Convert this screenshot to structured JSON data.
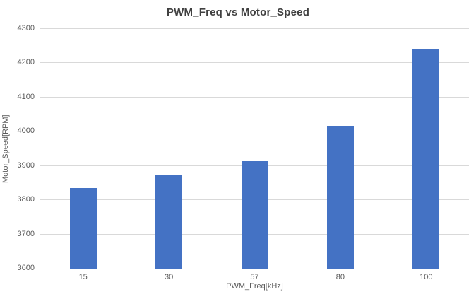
{
  "chart_data": {
    "type": "bar",
    "title": "PWM_Freq vs Motor_Speed",
    "xlabel": "PWM_Freq[kHz]",
    "ylabel": "Motor_Speed[RPM]",
    "categories": [
      "15",
      "30",
      "57",
      "80",
      "100"
    ],
    "series": [
      {
        "name": "Motor_Speed",
        "values": [
          3835,
          3875,
          3913,
          4017,
          4242
        ]
      }
    ],
    "ylim": [
      3600,
      4300
    ],
    "ytick_step": 100,
    "grid": true,
    "legend": false,
    "colors": {
      "bar": "#4472C4",
      "gridline": "#D9D9D9",
      "axis_line": "#BFBFBF",
      "tick_text": "#595959",
      "axis_title_text": "#595959",
      "title_text": "#404040",
      "background": "#FFFFFF"
    }
  }
}
